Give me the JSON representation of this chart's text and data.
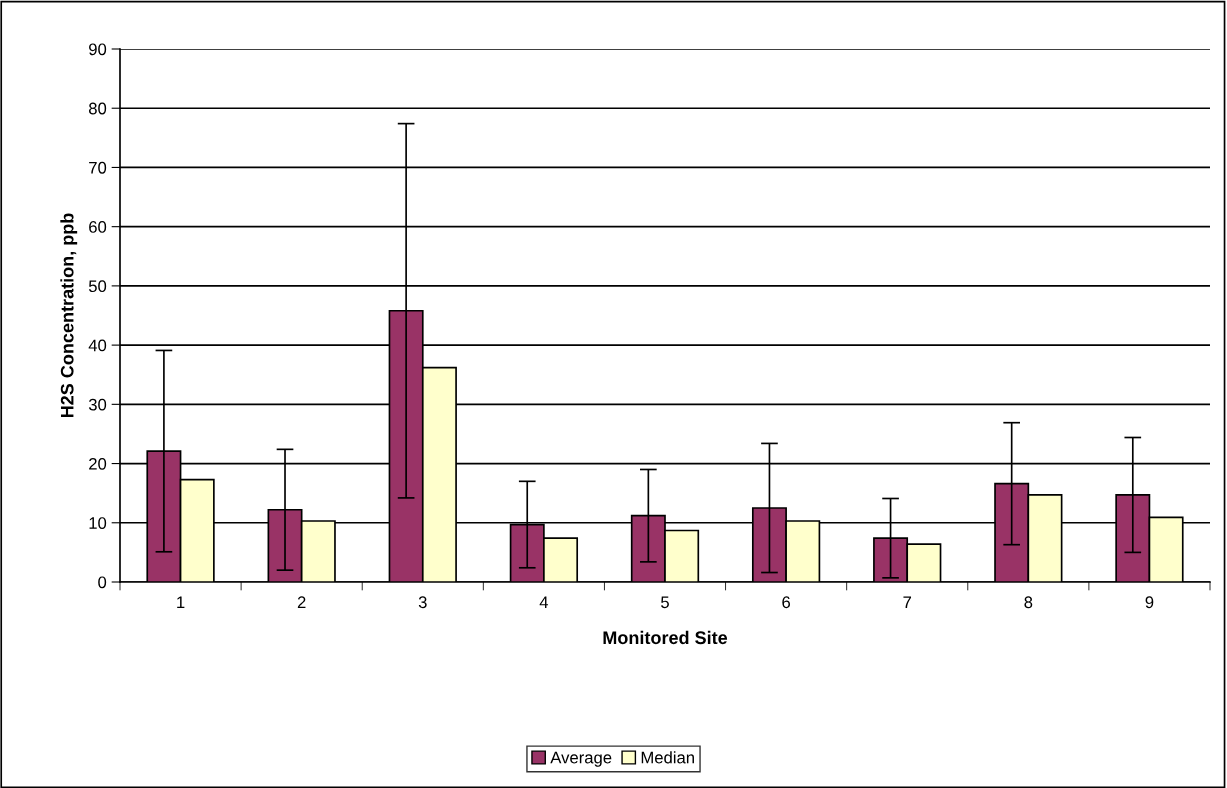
{
  "chart_data": {
    "type": "bar",
    "xlabel": "Monitored Site",
    "ylabel": "H2S Concentration, ppb",
    "categories": [
      "1",
      "2",
      "3",
      "4",
      "5",
      "6",
      "7",
      "8",
      "9"
    ],
    "series": [
      {
        "name": "Average",
        "color": "#993366",
        "values": [
          22.1,
          12.2,
          45.8,
          9.7,
          11.2,
          12.5,
          7.4,
          16.6,
          14.7
        ],
        "errors": [
          17.0,
          10.2,
          31.6,
          7.3,
          7.8,
          10.9,
          6.7,
          10.3,
          9.7
        ]
      },
      {
        "name": "Median",
        "color": "#ffffcc",
        "values": [
          17.3,
          10.3,
          36.2,
          7.4,
          8.7,
          10.3,
          6.4,
          14.7,
          10.9
        ]
      }
    ],
    "ylim": [
      0,
      90
    ],
    "yticks": [
      0,
      10,
      20,
      30,
      40,
      50,
      60,
      70,
      80,
      90
    ],
    "grid": "y",
    "legend": "bottom"
  }
}
